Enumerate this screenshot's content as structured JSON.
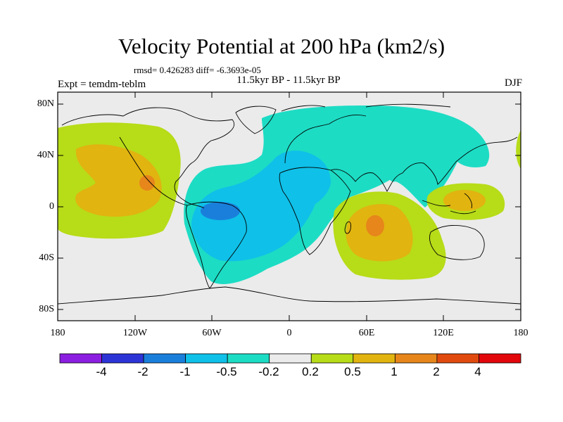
{
  "title": "Velocity Potential at 200 hPa (km2/s)",
  "stats": "rmsd= 0.426283 diff= -6.3693e-05",
  "subtitle": "11.5kyr BP - 11.5kyr BP",
  "experiment": "Expt = temdm-teblm",
  "season": "DJF",
  "y_ticks": [
    "80N",
    "40N",
    "0",
    "40S",
    "80S"
  ],
  "x_ticks": [
    "180",
    "120W",
    "60W",
    "0",
    "60E",
    "120E",
    "180"
  ],
  "colorbar": {
    "labels": [
      "-4",
      "-2",
      "-1",
      "-0.5",
      "-0.2",
      "0.2",
      "0.5",
      "1",
      "2",
      "4"
    ],
    "colors": [
      "#8b1ee0",
      "#2d34d6",
      "#1a7fdb",
      "#0fc0e8",
      "#1cdcc4",
      "#ebebeb",
      "#b7dc18",
      "#e1b410",
      "#e6861b",
      "#e04a0e",
      "#e2070b"
    ]
  },
  "chart_data": {
    "type": "heatmap",
    "title": "Velocity Potential at 200 hPa (km2/s)",
    "projection": "cylindrical equidistant",
    "lon_range": [
      -180,
      180
    ],
    "lat_range": [
      -90,
      90
    ],
    "contour_levels": [
      -4,
      -2,
      -1,
      -0.5,
      -0.2,
      0.2,
      0.5,
      1,
      2,
      4
    ],
    "features": [
      {
        "name": "Pacific positive center",
        "lon": -130,
        "lat": 20,
        "value_range": "0.5 to 2",
        "max_level": "1-2"
      },
      {
        "name": "Western Pacific positive center",
        "lon": 135,
        "lat": 10,
        "value_range": "0.2 to 1"
      },
      {
        "name": "Indian Ocean positive center",
        "lon": 65,
        "lat": -15,
        "value_range": "0.5 to 2",
        "max_level": "1-2"
      },
      {
        "name": "Tropical Atlantic / South America negative center",
        "lon": -60,
        "lat": -5,
        "value_range": "-1 to -0.2",
        "min_level": "-1 to -0.5"
      },
      {
        "name": "Eurasia negative band",
        "lon": 60,
        "lat": 50,
        "value_range": "-0.5 to -0.2"
      }
    ]
  }
}
